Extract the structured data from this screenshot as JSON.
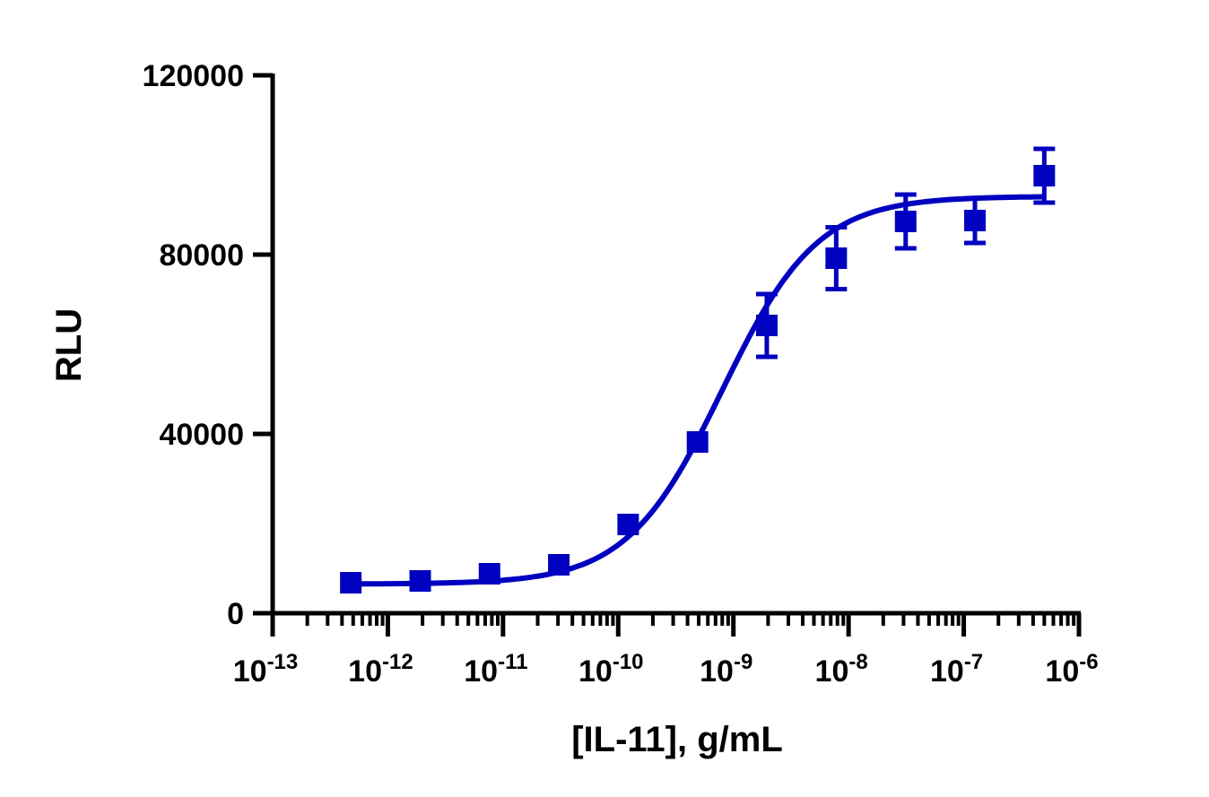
{
  "chart_data": {
    "type": "scatter",
    "xlabel": "[IL-11], g/mL",
    "ylabel": "RLU",
    "xscale": "log",
    "xlim": [
      1e-13,
      1e-06
    ],
    "ylim": [
      0,
      120000
    ],
    "x_ticks": [
      {
        "base": "10",
        "exp": "-13"
      },
      {
        "base": "10",
        "exp": "-12"
      },
      {
        "base": "10",
        "exp": "-11"
      },
      {
        "base": "10",
        "exp": "-10"
      },
      {
        "base": "10",
        "exp": "-9"
      },
      {
        "base": "10",
        "exp": "-8"
      },
      {
        "base": "10",
        "exp": "-7"
      },
      {
        "base": "10",
        "exp": "-6"
      }
    ],
    "y_ticks": [
      "0",
      "40000",
      "80000",
      "120000"
    ],
    "y_tick_values": [
      0,
      40000,
      80000,
      120000
    ],
    "grid": false,
    "color": "#0000C0",
    "marker": "square",
    "points": [
      {
        "x": 4.77e-13,
        "y": 6800,
        "err": 0
      },
      {
        "x": 1.91e-12,
        "y": 7200,
        "err": 0
      },
      {
        "x": 7.63e-12,
        "y": 8800,
        "err": 0
      },
      {
        "x": 3.05e-11,
        "y": 10800,
        "err": 0
      },
      {
        "x": 1.22e-10,
        "y": 19800,
        "err": 0
      },
      {
        "x": 4.88e-10,
        "y": 38200,
        "err": 0
      },
      {
        "x": 1.95e-09,
        "y": 64200,
        "err": 7000
      },
      {
        "x": 7.81e-09,
        "y": 79200,
        "err": 6900
      },
      {
        "x": 3.13e-08,
        "y": 87400,
        "err": 6000
      },
      {
        "x": 1.25e-07,
        "y": 87600,
        "err": 5000
      },
      {
        "x": 5e-07,
        "y": 97600,
        "err": 6000
      }
    ],
    "fit": {
      "model": "4PL",
      "bottom": 6500,
      "top": 93000,
      "ec50": 8e-10,
      "hill": 1.05
    }
  }
}
